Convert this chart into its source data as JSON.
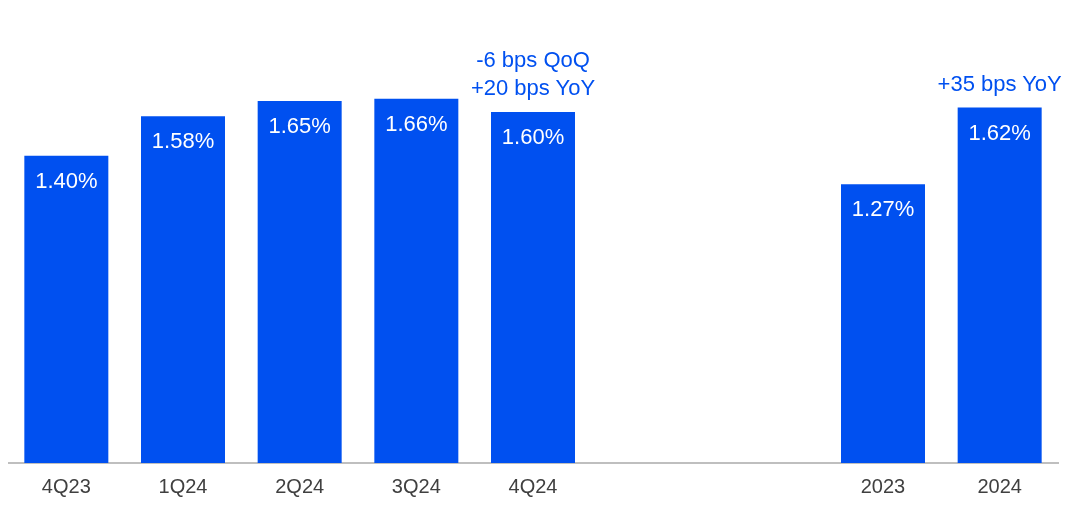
{
  "chart_data": {
    "type": "bar",
    "categories": [
      "4Q23",
      "1Q24",
      "2Q24",
      "3Q24",
      "4Q24",
      null,
      null,
      "2023",
      "2024"
    ],
    "values": [
      1.4,
      1.58,
      1.65,
      1.66,
      1.6,
      null,
      null,
      1.27,
      1.62
    ],
    "value_labels": [
      "1.40%",
      "1.58%",
      "1.65%",
      "1.66%",
      "1.60%",
      null,
      null,
      "1.27%",
      "1.62%"
    ],
    "color": "#0050f0",
    "grid": false,
    "legend": false,
    "annotations": [
      {
        "text": "-6 bps QoQ",
        "x": "4Q24",
        "y": 1.6
      },
      {
        "text": "+20 bps YoY",
        "x": "4Q24",
        "y": 1.6
      },
      {
        "text": "+35 bps YoY",
        "x": "2024",
        "y": 1.62
      }
    ]
  }
}
